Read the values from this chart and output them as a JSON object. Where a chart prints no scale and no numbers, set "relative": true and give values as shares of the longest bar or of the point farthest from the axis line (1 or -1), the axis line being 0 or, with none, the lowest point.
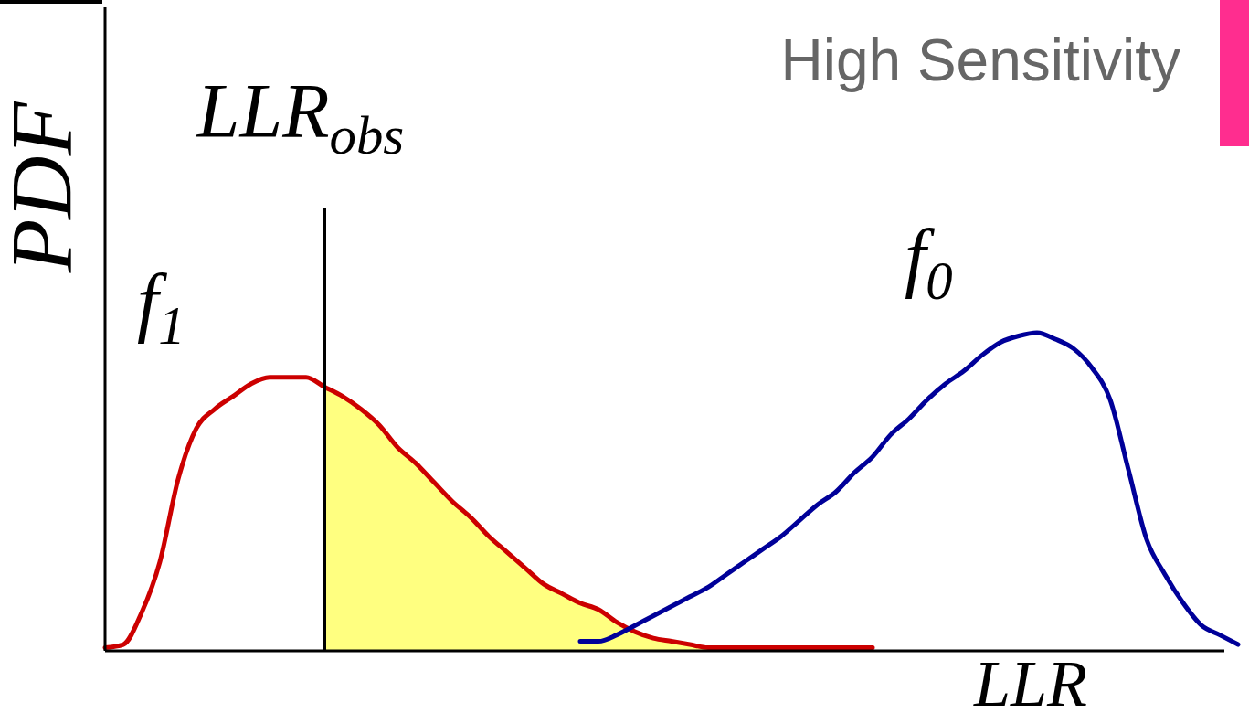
{
  "chart_data": {
    "type": "line",
    "title": "High Sensitivity",
    "xlabel": "LLR",
    "ylabel": "PDF",
    "relative": true,
    "annotations": [
      "LLR$_{obs}$"
    ],
    "categories": [
      null,
      null,
      null,
      null,
      null,
      null,
      null,
      null,
      null,
      null,
      null,
      null,
      null,
      null,
      null,
      null,
      null,
      null,
      null,
      null,
      null,
      null,
      null,
      null,
      null,
      null,
      null,
      null,
      null,
      null,
      null,
      null,
      null,
      null,
      null,
      null,
      null,
      null,
      null,
      null,
      null,
      null,
      null,
      null,
      null,
      null,
      null,
      null,
      null,
      null,
      null,
      null,
      null,
      null,
      null,
      null,
      null,
      null,
      null,
      null,
      null,
      null,
      null
    ],
    "series": [
      {
        "type": "area",
        "color": "#ffff80",
        "values": [
          null,
          null,
          null,
          null,
          null,
          null,
          null,
          null,
          null,
          null,
          null,
          null,
          0.83,
          0.8,
          0.76,
          0.71,
          0.64,
          0.59,
          0.53,
          0.47,
          0.42,
          0.36,
          0.31,
          0.26,
          0.21,
          0.18,
          0.15,
          0.13,
          0.09,
          0.06,
          0.04,
          0.03,
          0.02,
          0.01,
          null,
          null,
          null,
          null,
          null,
          null,
          null,
          null,
          null,
          null,
          null,
          null,
          null,
          null,
          null,
          null,
          null,
          null,
          null,
          null,
          null,
          null,
          null,
          null,
          null,
          null,
          null,
          null,
          null
        ]
      },
      {
        "name": "f$_{1}$",
        "color": "#cc0000",
        "values": [
          0.01,
          0.02,
          0.12,
          0.28,
          0.54,
          0.7,
          0.76,
          0.8,
          0.84,
          0.86,
          0.86,
          0.86,
          0.83,
          0.8,
          0.76,
          0.71,
          0.64,
          0.59,
          0.53,
          0.47,
          0.42,
          0.36,
          0.31,
          0.26,
          0.21,
          0.18,
          0.15,
          0.13,
          0.09,
          0.06,
          0.04,
          0.03,
          0.02,
          0.01,
          0.01,
          0.01,
          0.01,
          0.01,
          0.01,
          0.01,
          0.01,
          0.01,
          0.01,
          null,
          null,
          null,
          null,
          null,
          null,
          null,
          null,
          null,
          null,
          null,
          null,
          null,
          null,
          null,
          null,
          null,
          null,
          null,
          null
        ]
      },
      {
        "name": "f$_{0}$",
        "color": "#000099",
        "values": [
          null,
          null,
          null,
          null,
          null,
          null,
          null,
          null,
          null,
          null,
          null,
          null,
          null,
          null,
          null,
          null,
          null,
          null,
          null,
          null,
          null,
          null,
          null,
          null,
          null,
          null,
          0.03,
          0.03,
          0.05,
          0.08,
          0.11,
          0.14,
          0.17,
          0.2,
          0.24,
          0.28,
          0.32,
          0.36,
          0.41,
          0.46,
          0.5,
          0.56,
          0.61,
          0.68,
          0.73,
          0.79,
          0.84,
          0.88,
          0.93,
          0.97,
          0.99,
          1,
          0.98,
          0.95,
          0.89,
          0.79,
          0.57,
          0.35,
          0.24,
          0.15,
          0.08,
          0.05,
          0.02
        ]
      }
    ]
  }
}
